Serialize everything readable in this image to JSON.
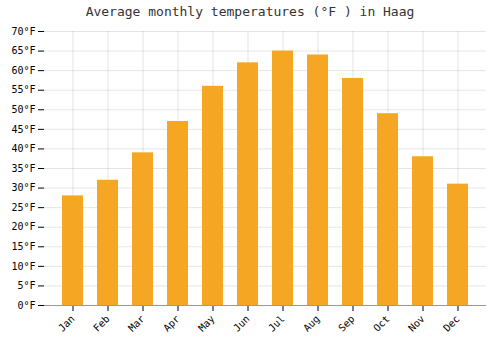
{
  "chart_data": {
    "type": "bar",
    "title": "Average monthly temperatures (°F ) in Haag",
    "categories": [
      "Jan",
      "Feb",
      "Mar",
      "Apr",
      "May",
      "Jun",
      "Jul",
      "Aug",
      "Sep",
      "Oct",
      "Nov",
      "Dec"
    ],
    "values": [
      28,
      32,
      39,
      47,
      56,
      62,
      65,
      64,
      58,
      49,
      38,
      31
    ],
    "color": "#F5A623",
    "ylim": [
      0,
      70
    ],
    "yticks": [
      {
        "value": 0,
        "label": "0°F"
      },
      {
        "value": 5,
        "label": "5°F"
      },
      {
        "value": 10,
        "label": "10°F"
      },
      {
        "value": 15,
        "label": "15°F"
      },
      {
        "value": 20,
        "label": "20°F"
      },
      {
        "value": 25,
        "label": "25°F"
      },
      {
        "value": 30,
        "label": "30°F"
      },
      {
        "value": 35,
        "label": "35°F"
      },
      {
        "value": 40,
        "label": "40°F"
      },
      {
        "value": 45,
        "label": "45°F"
      },
      {
        "value": 50,
        "label": "50°F"
      },
      {
        "value": 55,
        "label": "55°F"
      },
      {
        "value": 60,
        "label": "60°F"
      },
      {
        "value": 65,
        "label": "65°F"
      },
      {
        "value": 70,
        "label": "70°F"
      }
    ],
    "grid": true
  }
}
